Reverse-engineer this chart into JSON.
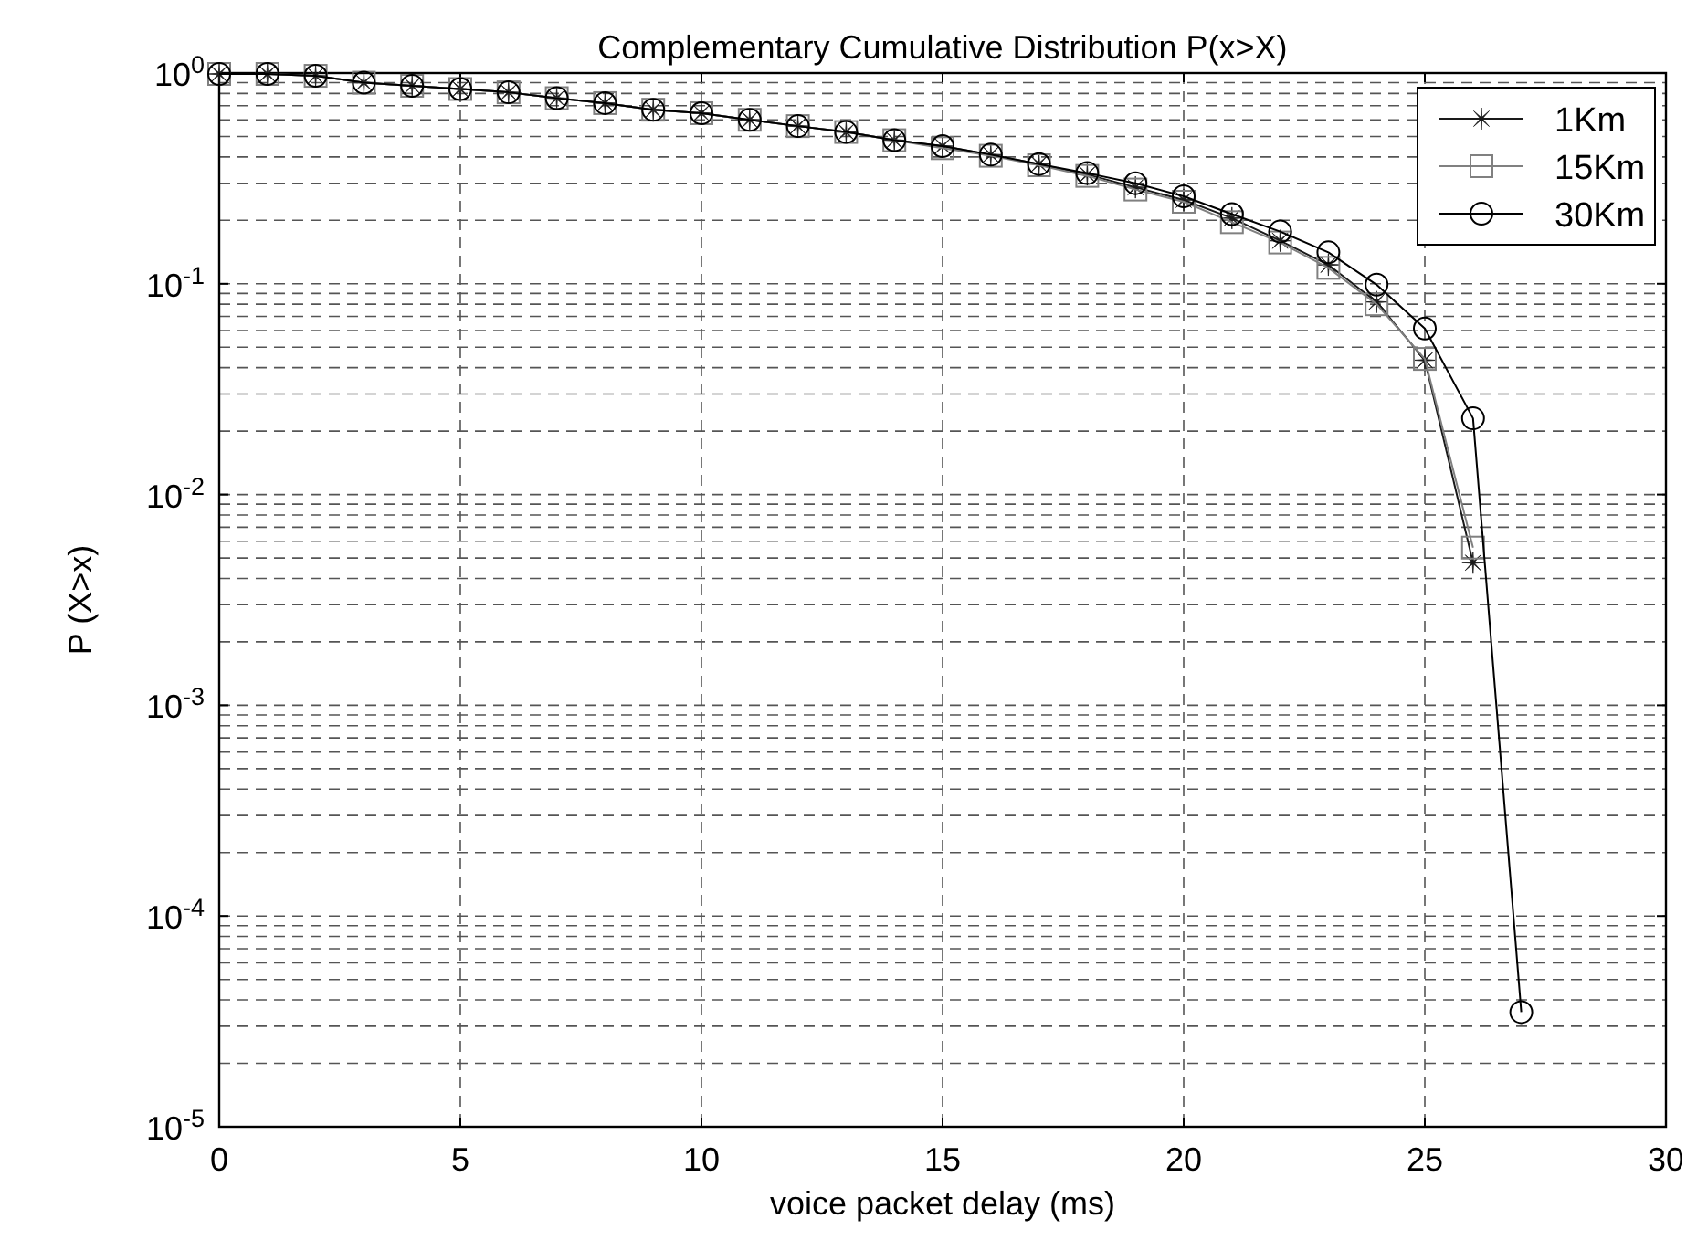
{
  "chart_data": {
    "type": "line",
    "title": "Complementary Cumulative Distribution P(x>X)",
    "xlabel": "voice packet delay (ms)",
    "ylabel": "P (X>x)",
    "log": "y",
    "grid": true,
    "legend": "top right",
    "line_style": "solid",
    "xlim": [
      0,
      30
    ],
    "xticks": [
      0,
      5,
      10,
      15,
      20,
      25,
      30
    ],
    "ylim": [
      1e-05,
      1
    ],
    "yticks": [
      {
        "value": 1,
        "label": "10$^{0}$"
      },
      {
        "value": 0.1,
        "label": "10$^{-1}$"
      },
      {
        "value": 0.01,
        "label": "10$^{-2}$"
      },
      {
        "value": 0.001,
        "label": "10$^{-3}$"
      },
      {
        "value": 0.0001,
        "label": "10$^{-4}$"
      },
      {
        "value": 1e-05,
        "label": "10$^{-5}$"
      }
    ],
    "series": [
      {
        "name": "1Km",
        "color": "#1a1a1a",
        "marker": "star",
        "x": [
          0,
          1,
          2,
          3,
          4,
          5,
          6,
          7,
          8,
          9,
          10,
          11,
          12,
          13,
          14,
          15,
          16,
          17,
          18,
          19,
          20,
          21,
          22,
          23,
          24,
          25,
          26
        ],
        "values": [
          0.99,
          0.99,
          0.97,
          0.9,
          0.87,
          0.84,
          0.81,
          0.76,
          0.72,
          0.67,
          0.645,
          0.6,
          0.56,
          0.525,
          0.48,
          0.45,
          0.41,
          0.37,
          0.33,
          0.287,
          0.25,
          0.205,
          0.16,
          0.123,
          0.082,
          0.0434,
          0.00475
        ]
      },
      {
        "name": "15Km",
        "color": "#808080",
        "marker": "square",
        "x": [
          0,
          1,
          2,
          3,
          4,
          5,
          6,
          7,
          8,
          9,
          10,
          11,
          12,
          13,
          14,
          15,
          16,
          17,
          18,
          19,
          20,
          21,
          22,
          23,
          24,
          25,
          26
        ],
        "values": [
          0.99,
          0.99,
          0.97,
          0.9,
          0.87,
          0.84,
          0.81,
          0.76,
          0.72,
          0.67,
          0.645,
          0.6,
          0.56,
          0.525,
          0.48,
          0.44,
          0.405,
          0.365,
          0.325,
          0.28,
          0.245,
          0.196,
          0.157,
          0.119,
          0.08,
          0.044,
          0.0056
        ]
      },
      {
        "name": "30Km",
        "color": "#000000",
        "marker": "circle",
        "x": [
          0,
          1,
          2,
          3,
          4,
          5,
          6,
          7,
          8,
          9,
          10,
          11,
          12,
          13,
          14,
          15,
          16,
          17,
          18,
          19,
          20,
          21,
          22,
          23,
          24,
          25,
          26,
          27
        ],
        "values": [
          0.99,
          0.99,
          0.97,
          0.9,
          0.87,
          0.84,
          0.81,
          0.76,
          0.72,
          0.67,
          0.645,
          0.6,
          0.56,
          0.525,
          0.48,
          0.45,
          0.41,
          0.37,
          0.335,
          0.3,
          0.26,
          0.214,
          0.177,
          0.141,
          0.099,
          0.0614,
          0.023,
          3.5e-05
        ]
      }
    ]
  }
}
